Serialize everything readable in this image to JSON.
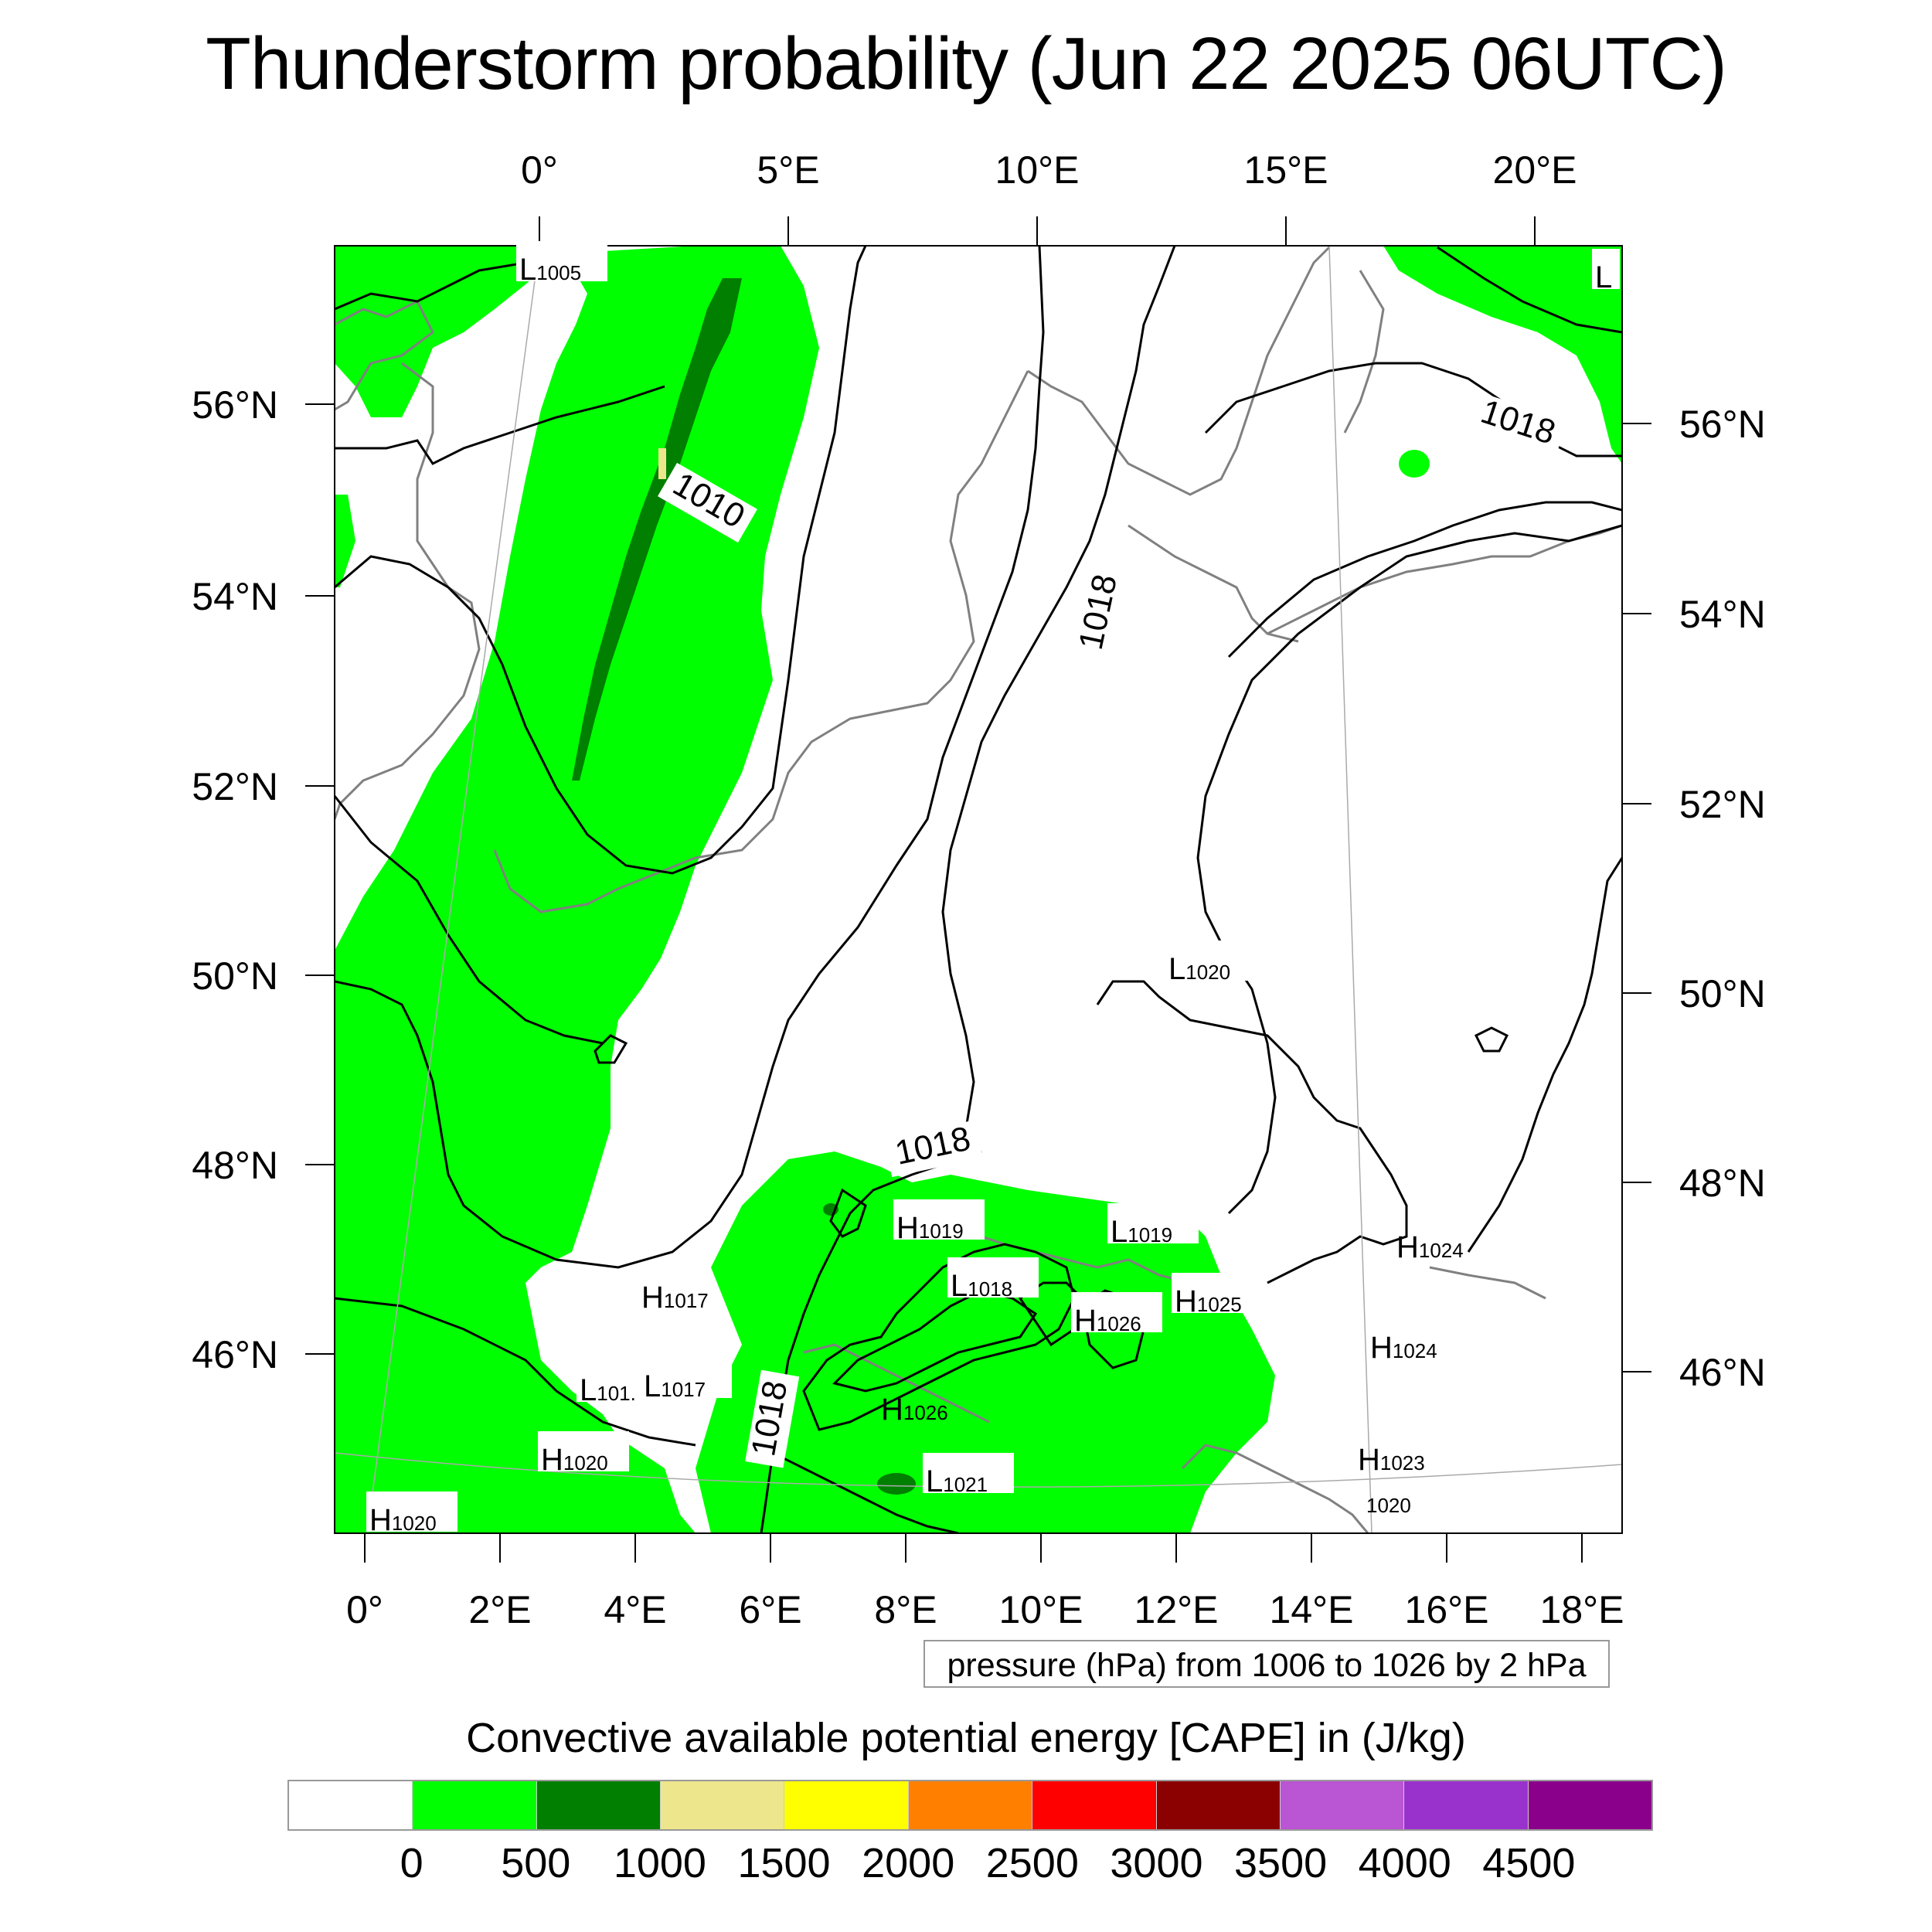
{
  "title": "Thunderstorm probability (Jun 22 2025 06UTC)",
  "map": {
    "top_lon_labels": [
      "0°",
      "5°E",
      "10°E",
      "15°E",
      "20°E"
    ],
    "bottom_lon_labels": [
      "0°",
      "2°E",
      "4°E",
      "6°E",
      "8°E",
      "10°E",
      "12°E",
      "14°E",
      "16°E",
      "18°E"
    ],
    "left_lat_labels": [
      "56°N",
      "54°N",
      "52°N",
      "50°N",
      "48°N",
      "46°N"
    ],
    "right_lat_labels": [
      "56°N",
      "54°N",
      "52°N",
      "50°N",
      "48°N",
      "46°N"
    ],
    "isobar_labels": [
      "1010",
      "1018",
      "1018",
      "1018",
      "1018"
    ],
    "pressure_centers": [
      {
        "letter": "L",
        "value": "1005"
      },
      {
        "letter": "L",
        "value": ""
      },
      {
        "letter": "L",
        "value": "1020"
      },
      {
        "letter": "H",
        "value": "1019"
      },
      {
        "letter": "L",
        "value": "1019"
      },
      {
        "letter": "L",
        "value": "1018"
      },
      {
        "letter": "H",
        "value": "1025"
      },
      {
        "letter": "H",
        "value": "1024"
      },
      {
        "letter": "H",
        "value": "1017"
      },
      {
        "letter": "H",
        "value": "1026"
      },
      {
        "letter": "H",
        "value": "1024"
      },
      {
        "letter": "L",
        "value": "101."
      },
      {
        "letter": "L",
        "value": "1017"
      },
      {
        "letter": "H",
        "value": "1026"
      },
      {
        "letter": "H",
        "value": "1023"
      },
      {
        "letter": "H",
        "value": "1020"
      },
      {
        "letter": "L",
        "value": "1021"
      },
      {
        "letter": "",
        "value": "1020"
      },
      {
        "letter": "H",
        "value": "1020"
      }
    ],
    "colors": {
      "cape_0_500": "#00ff00",
      "cape_500_1000": "#007f00",
      "cape_1000_1500": "#eee68c",
      "coastline": "#808080",
      "isobar": "#000000"
    }
  },
  "pressure_note": "pressure (hPa) from 1006 to 1026 by 2 hPa",
  "colorbar": {
    "title": "Convective available potential energy [CAPE] in (J/kg)",
    "colors": [
      "#ffffff",
      "#00ff00",
      "#007f00",
      "#eee68c",
      "#ffff00",
      "#ff8000",
      "#ff0000",
      "#8b0000",
      "#ba55d3",
      "#9932cc",
      "#8b008b"
    ],
    "ticks": [
      "0",
      "500",
      "1000",
      "1500",
      "2000",
      "2500",
      "3000",
      "3500",
      "4000",
      "4500"
    ]
  }
}
